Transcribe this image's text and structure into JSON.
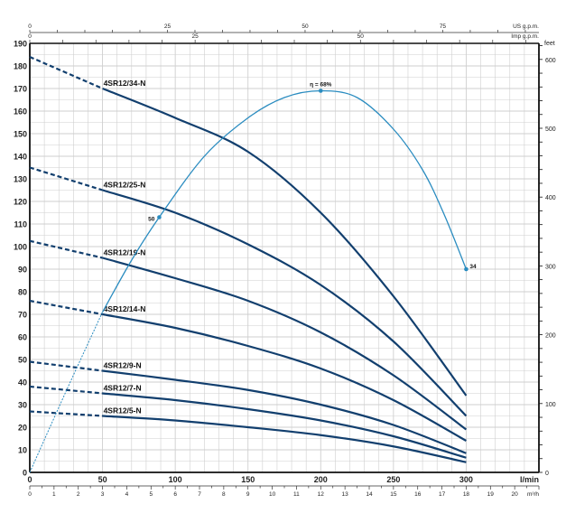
{
  "chart_data": {
    "type": "line",
    "title": "",
    "xlabel": "l/min",
    "ylabel": "",
    "xlim": [
      0,
      350
    ],
    "ylim": [
      0,
      190
    ],
    "grid": true,
    "x_ticks": [
      0,
      50,
      100,
      150,
      200,
      250,
      300
    ],
    "y_ticks": [
      0,
      10,
      20,
      30,
      40,
      50,
      60,
      70,
      80,
      90,
      100,
      110,
      120,
      130,
      140,
      150,
      160,
      170,
      180,
      190
    ],
    "secondary_axes": {
      "right": {
        "label": "feet",
        "ticks": [
          0,
          100,
          200,
          300,
          400,
          500,
          600
        ]
      },
      "top_us": {
        "label": "US g.p.m.",
        "ticks": [
          0,
          25,
          50,
          75
        ]
      },
      "top_imp": {
        "label": "Imp g.p.m.",
        "ticks": [
          0,
          25,
          50
        ]
      },
      "bottom_m3h": {
        "label": "m³/h",
        "ticks": [
          0,
          1,
          2,
          3,
          4,
          5,
          6,
          7,
          8,
          9,
          10,
          11,
          12,
          13,
          14,
          15,
          16,
          17,
          18,
          19,
          20
        ]
      }
    },
    "colors": {
      "head_curve": "#123f6e",
      "efficiency_curve": "#2a8cc0",
      "grid": "#cfcfcf"
    },
    "series": [
      {
        "name": "4SR12/34-N",
        "dashed_until": 50,
        "points": [
          [
            0,
            184
          ],
          [
            50,
            170
          ],
          [
            100,
            157
          ],
          [
            150,
            142
          ],
          [
            200,
            115
          ],
          [
            250,
            78
          ],
          [
            300,
            34
          ]
        ]
      },
      {
        "name": "4SR12/25-N",
        "dashed_until": 50,
        "points": [
          [
            0,
            135
          ],
          [
            50,
            125
          ],
          [
            100,
            115
          ],
          [
            150,
            101
          ],
          [
            200,
            83
          ],
          [
            250,
            58
          ],
          [
            300,
            25
          ]
        ]
      },
      {
        "name": "4SR12/19-N",
        "dashed_until": 50,
        "points": [
          [
            0,
            102.5
          ],
          [
            50,
            95
          ],
          [
            100,
            86
          ],
          [
            150,
            76
          ],
          [
            200,
            62
          ],
          [
            250,
            43
          ],
          [
            300,
            19
          ]
        ]
      },
      {
        "name": "4SR12/14-N",
        "dashed_until": 50,
        "points": [
          [
            0,
            76
          ],
          [
            50,
            70
          ],
          [
            100,
            64
          ],
          [
            150,
            56
          ],
          [
            200,
            46
          ],
          [
            250,
            32
          ],
          [
            300,
            14
          ]
        ]
      },
      {
        "name": "4SR12/9-N",
        "dashed_until": 50,
        "points": [
          [
            0,
            49
          ],
          [
            50,
            45
          ],
          [
            100,
            41
          ],
          [
            150,
            36.5
          ],
          [
            200,
            30
          ],
          [
            250,
            21
          ],
          [
            300,
            8.5
          ]
        ]
      },
      {
        "name": "4SR12/7-N",
        "dashed_until": 50,
        "points": [
          [
            0,
            38
          ],
          [
            50,
            35
          ],
          [
            100,
            32
          ],
          [
            150,
            28
          ],
          [
            200,
            23
          ],
          [
            250,
            16
          ],
          [
            300,
            6.5
          ]
        ]
      },
      {
        "name": "4SR12/5-N",
        "dashed_until": 50,
        "points": [
          [
            0,
            27
          ],
          [
            50,
            25
          ],
          [
            100,
            23
          ],
          [
            150,
            20
          ],
          [
            200,
            16.5
          ],
          [
            250,
            11.5
          ],
          [
            300,
            4.5
          ]
        ]
      }
    ],
    "efficiency": {
      "dashed_until": 50,
      "points": [
        [
          0,
          0
        ],
        [
          25,
          36
        ],
        [
          50,
          71
        ],
        [
          70,
          94
        ],
        [
          89,
          113
        ],
        [
          120,
          140
        ],
        [
          150,
          157
        ],
        [
          175,
          166
        ],
        [
          200,
          169
        ],
        [
          225,
          166
        ],
        [
          250,
          152
        ],
        [
          270,
          134
        ],
        [
          285,
          114
        ],
        [
          300,
          90
        ]
      ],
      "markers": [
        {
          "x": 89,
          "y": 113,
          "label": "50"
        },
        {
          "x": 200,
          "y": 169,
          "label": "η = 68%"
        },
        {
          "x": 300,
          "y": 90,
          "label": "34"
        }
      ]
    }
  }
}
